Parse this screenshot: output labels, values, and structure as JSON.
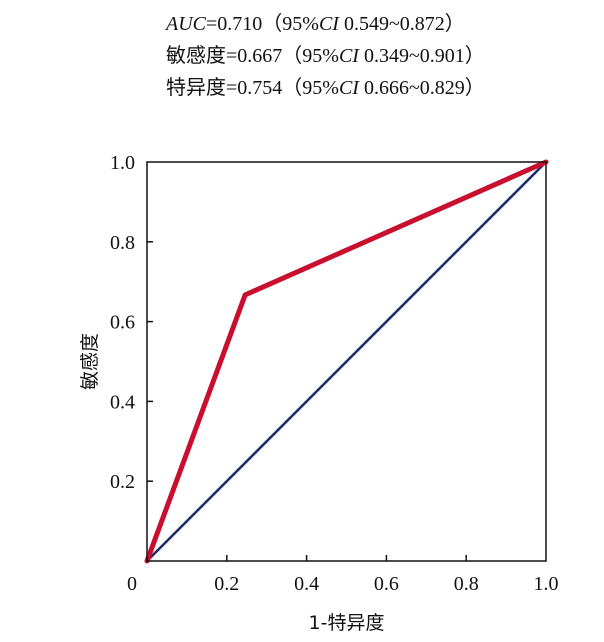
{
  "annotations": [
    {
      "prefix": "",
      "metric": "AUC",
      "value": "=0.710",
      "ci_open": "（95%",
      "ci_label": "CI",
      "ci_range": " 0.549~0.872",
      "ci_close": "）"
    },
    {
      "prefix": "敏感度",
      "metric": "",
      "value": "=0.667",
      "ci_open": "（95%",
      "ci_label": "CI",
      "ci_range": " 0.349~0.901",
      "ci_close": "）"
    },
    {
      "prefix": "特异度",
      "metric": "",
      "value": "=0.754",
      "ci_open": "（95%",
      "ci_label": "CI",
      "ci_range": " 0.666~0.829",
      "ci_close": "）"
    }
  ],
  "chart_data": {
    "type": "line",
    "xlabel": "1-特异度",
    "ylabel": "敏感度",
    "xlim": [
      0,
      1
    ],
    "ylim": [
      0,
      1
    ],
    "x_ticks": [
      0,
      0.2,
      0.4,
      0.6,
      0.8,
      1.0
    ],
    "x_tick_labels": [
      "0",
      "0.2",
      "0.4",
      "0.6",
      "0.8",
      "1.0"
    ],
    "y_ticks": [
      0.2,
      0.4,
      0.6,
      0.8,
      1.0
    ],
    "y_tick_labels": [
      "0.2",
      "0.4",
      "0.6",
      "0.8",
      "1.0"
    ],
    "grid": false,
    "legend": "none",
    "series": [
      {
        "x": [
          0,
          0.246,
          1.0
        ],
        "y": [
          0,
          0.667,
          1.0
        ],
        "color": "#c8102e"
      },
      {
        "x": [
          0,
          1.0
        ],
        "y": [
          0,
          1.0
        ],
        "color": "#1f2f6b"
      }
    ]
  }
}
